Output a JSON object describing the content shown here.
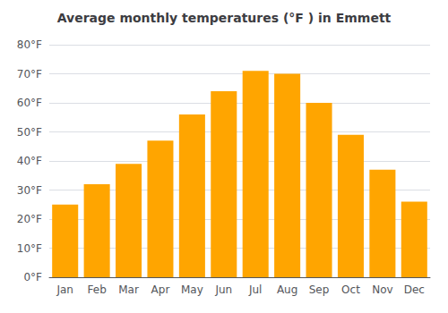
{
  "chart_data": {
    "type": "bar",
    "title": "Average monthly temperatures (°F ) in Emmett",
    "categories": [
      "Jan",
      "Feb",
      "Mar",
      "Apr",
      "May",
      "Jun",
      "Jul",
      "Aug",
      "Sep",
      "Oct",
      "Nov",
      "Dec"
    ],
    "values": [
      25,
      32,
      39,
      47,
      56,
      64,
      71,
      70,
      60,
      49,
      37,
      26
    ],
    "color": "#FFA500",
    "ylim": [
      0,
      80
    ],
    "yticks": [
      {
        "value": 0,
        "label": "0°F"
      },
      {
        "value": 10,
        "label": "10°F"
      },
      {
        "value": 20,
        "label": "20°F"
      },
      {
        "value": 30,
        "label": "30°F"
      },
      {
        "value": 40,
        "label": "40°F"
      },
      {
        "value": 50,
        "label": "50°F"
      },
      {
        "value": 60,
        "label": "60°F"
      },
      {
        "value": 70,
        "label": "70°F"
      },
      {
        "value": 80,
        "label": "80°F"
      }
    ],
    "grid": true
  }
}
